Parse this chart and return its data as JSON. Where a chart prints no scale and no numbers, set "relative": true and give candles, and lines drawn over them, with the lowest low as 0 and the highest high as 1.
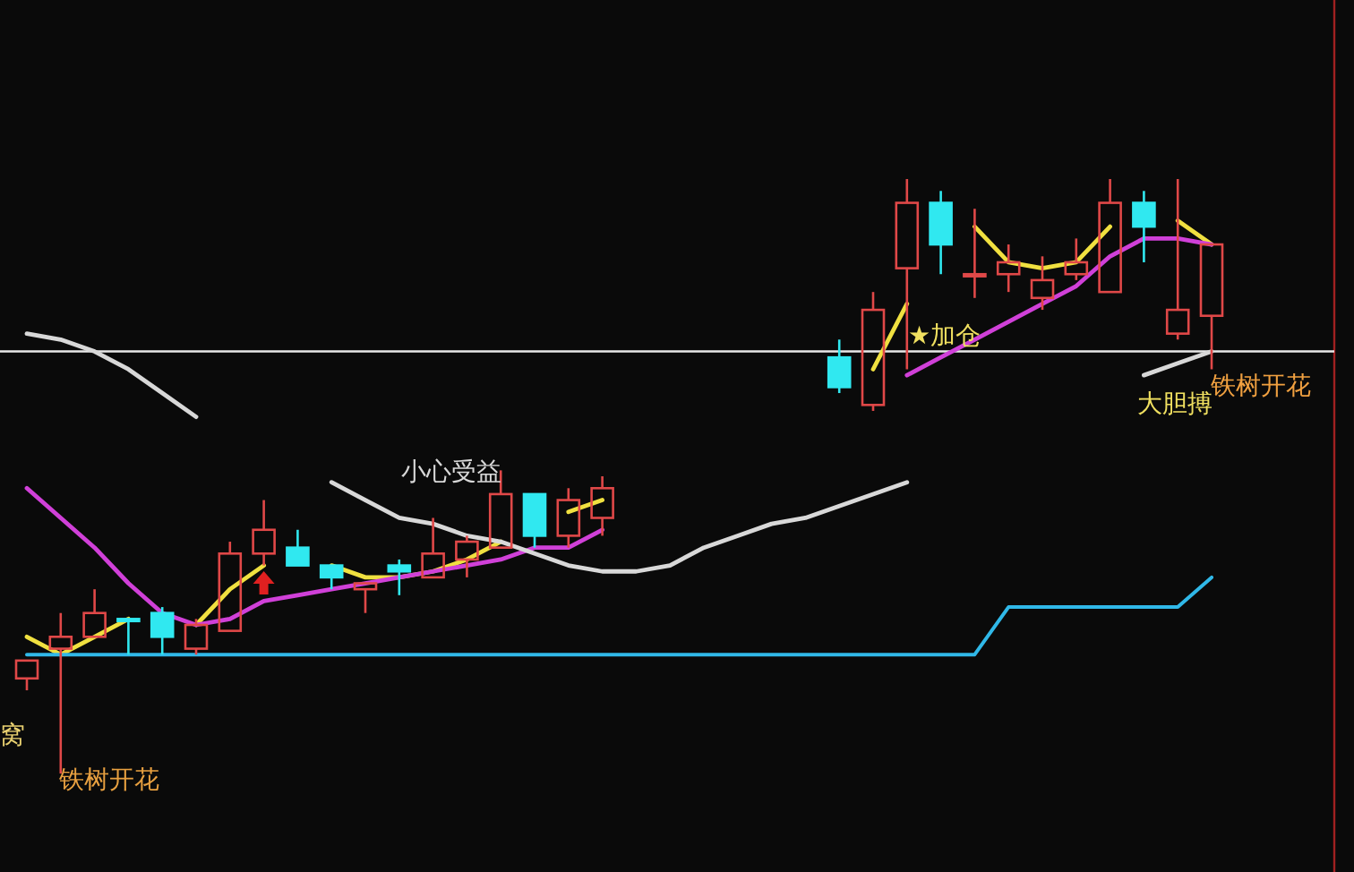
{
  "chart_data": {
    "type": "candlestick",
    "relative": true,
    "categories": [
      null,
      null,
      null,
      null,
      null,
      null,
      null,
      null,
      null,
      null,
      null,
      null,
      null,
      null,
      null,
      null,
      null,
      null,
      null,
      null,
      null,
      null,
      null,
      null,
      null,
      null,
      null,
      null,
      null,
      null,
      null,
      null,
      null,
      null,
      null,
      null
    ],
    "ohlc": [
      [
        0.16,
        0.19,
        0.14,
        0.19
      ],
      [
        0.21,
        0.27,
        0,
        0.23
      ],
      [
        0.23,
        0.31,
        0.23,
        0.27
      ],
      [
        0.26,
        0.26,
        0.2,
        0.26
      ],
      [
        0.27,
        0.28,
        0.2,
        0.23
      ],
      [
        0.21,
        0.26,
        0.2,
        0.25
      ],
      [
        0.24,
        0.39,
        0.24,
        0.37
      ],
      [
        0.37,
        0.46,
        0.35,
        0.41
      ],
      [
        0.38,
        0.41,
        0.35,
        0.35
      ],
      [
        0.35,
        0.35,
        0.31,
        0.33
      ],
      [
        0.31,
        0.32,
        0.27,
        0.32
      ],
      [
        0.35,
        0.36,
        0.3,
        0.34
      ],
      [
        0.33,
        0.43,
        0.33,
        0.37
      ],
      [
        0.36,
        0.4,
        0.33,
        0.39
      ],
      [
        0.38,
        0.51,
        0.38,
        0.47
      ],
      [
        0.47,
        0.47,
        0.38,
        0.4
      ],
      [
        0.4,
        0.48,
        0.38,
        0.46
      ],
      [
        0.43,
        0.5,
        0.4,
        0.48
      ],
      null,
      null,
      null,
      null,
      null,
      null,
      [
        0.7,
        0.73,
        0.64,
        0.65
      ],
      [
        0.62,
        0.81,
        0.61,
        0.78
      ],
      [
        0.85,
        1,
        0.68,
        0.96
      ],
      [
        0.96,
        0.98,
        0.84,
        0.89
      ],
      [
        0.84,
        0.95,
        0.8,
        0.84
      ],
      [
        0.84,
        0.89,
        0.81,
        0.86
      ],
      [
        0.8,
        0.87,
        0.78,
        0.83
      ],
      [
        0.84,
        0.9,
        0.83,
        0.86
      ],
      [
        0.81,
        1,
        0.81,
        0.96
      ],
      [
        0.96,
        0.98,
        0.86,
        0.92
      ],
      [
        0.74,
        1,
        0.73,
        0.78
      ],
      [
        0.77,
        0.89,
        0.68,
        0.89
      ]
    ],
    "colors": [
      "#e04848",
      "#e04848",
      "#e04848",
      "#30e8f0",
      "#30e8f0",
      "#e04848",
      "#e04848",
      "#e04848",
      "#30e8f0",
      "#30e8f0",
      "#e04848",
      "#30e8f0",
      "#e04848",
      "#e04848",
      "#e04848",
      "#30e8f0",
      "#e04848",
      "#e04848",
      null,
      null,
      null,
      null,
      null,
      null,
      "#30e8f0",
      "#e04848",
      "#e04848",
      "#30e8f0",
      "#e04848",
      "#e04848",
      "#e04848",
      "#e04848",
      "#e04848",
      "#30e8f0",
      "#e04848",
      "#e04848"
    ],
    "series": [
      {
        "type": "line",
        "color": "#f0e040",
        "values": [
          0.23,
          0.2,
          0.23,
          0.26,
          null,
          0.25,
          0.31,
          0.35,
          null,
          0.35,
          0.33,
          0.33,
          0.34,
          0.36,
          0.39,
          null,
          0.44,
          0.46,
          null,
          null,
          null,
          null,
          null,
          null,
          null,
          0.68,
          0.79,
          null,
          0.92,
          0.86,
          0.85,
          0.86,
          0.92,
          null,
          0.93,
          0.89
        ]
      },
      {
        "type": "line",
        "color": "#d040d8",
        "values": [
          0.48,
          0.43,
          0.38,
          0.32,
          0.27,
          0.25,
          0.26,
          0.29,
          0.3,
          0.31,
          0.32,
          0.33,
          0.34,
          0.35,
          0.36,
          0.38,
          0.38,
          0.41,
          null,
          null,
          null,
          null,
          null,
          null,
          null,
          null,
          0.67,
          0.7,
          0.73,
          0.76,
          0.79,
          0.82,
          0.87,
          0.9,
          0.9,
          0.89
        ]
      },
      {
        "type": "line",
        "color": "#d8d8d8",
        "values": [
          0.74,
          0.73,
          0.71,
          0.68,
          0.64,
          0.6,
          null,
          null,
          null,
          0.49,
          0.46,
          0.43,
          0.42,
          0.4,
          0.39,
          0.37,
          0.35,
          0.34,
          0.34,
          0.35,
          0.38,
          0.4,
          0.42,
          0.43,
          0.45,
          0.47,
          0.49,
          null,
          null,
          null,
          null,
          null,
          null,
          0.67,
          0.69,
          0.71
        ]
      },
      {
        "type": "step",
        "color": "#30b8e8",
        "values": [
          0.2,
          0.2,
          0.2,
          0.2,
          0.2,
          0.2,
          0.2,
          0.2,
          0.2,
          0.2,
          0.2,
          0.2,
          0.2,
          0.2,
          0.2,
          0.2,
          0.2,
          0.2,
          0.2,
          0.2,
          0.2,
          0.2,
          0.2,
          0.2,
          0.2,
          0.2,
          0.2,
          0.2,
          0.2,
          0.28,
          0.28,
          0.28,
          0.28,
          0.28,
          0.28,
          0.33
        ]
      }
    ],
    "ref_lines": [
      {
        "axis": "y",
        "value": 0.71,
        "color": "#e8e8e8"
      }
    ],
    "annotations": [
      "铁树开花",
      "窝",
      "小心受益",
      "★加仓",
      "大胆搏",
      "铁树开花"
    ]
  }
}
